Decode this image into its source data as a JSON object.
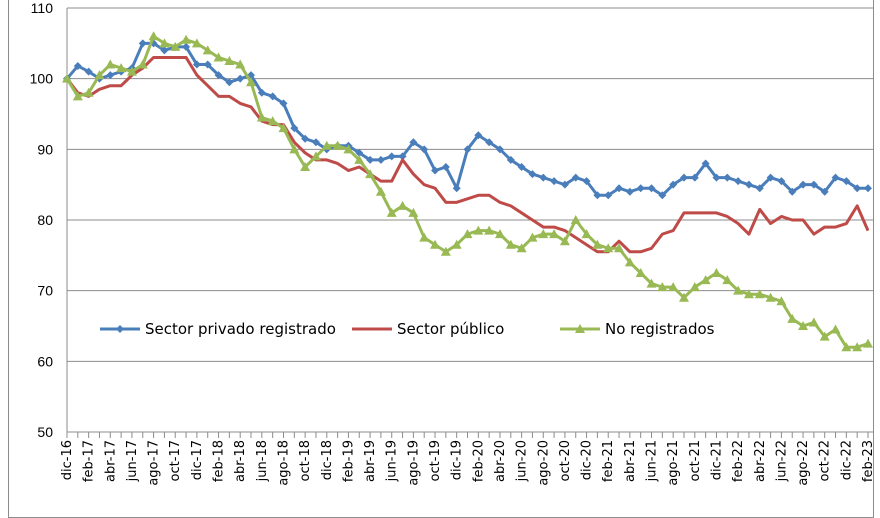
{
  "chart_data": {
    "type": "line",
    "title": "",
    "xlabel": "",
    "ylabel": "",
    "ylim": [
      50,
      110
    ],
    "yticks": [
      50,
      60,
      70,
      80,
      90,
      100,
      110
    ],
    "grid": true,
    "legend_position": "inside-bottom-left",
    "tick_labels": [
      "dic-16",
      "feb-17",
      "abr-17",
      "jun-17",
      "ago-17",
      "oct-17",
      "dic-17",
      "feb-18",
      "abr-18",
      "jun-18",
      "ago-18",
      "oct-18",
      "dic-18",
      "feb-19",
      "abr-19",
      "jun-19",
      "ago-19",
      "oct-19",
      "dic-19",
      "feb-20",
      "abr-20",
      "jun-20",
      "ago-20",
      "oct-20",
      "dic-20",
      "feb-21",
      "abr-21",
      "jun-21",
      "ago-21",
      "oct-21",
      "dic-21",
      "feb-22",
      "abr-22",
      "jun-22",
      "ago-22",
      "oct-22",
      "dic-22",
      "feb-23"
    ],
    "x_note": "monthly points, dic-16 to feb-23",
    "series": [
      {
        "name": "Sector privado registrado",
        "color": "#4a7ebb",
        "marker": "diamond",
        "values": [
          100,
          101.8,
          101,
          100,
          100.5,
          101,
          101.5,
          105,
          105,
          104,
          104.5,
          104.5,
          102,
          102,
          100.5,
          99.5,
          100,
          100.5,
          98,
          97.5,
          96.5,
          93,
          91.5,
          91,
          90,
          90.5,
          90.5,
          89.5,
          88.5,
          88.5,
          89,
          89,
          91,
          90,
          87,
          87.5,
          84.5,
          90,
          92,
          91,
          90,
          88.5,
          87.5,
          86.5,
          86,
          85.5,
          85,
          86,
          85.5,
          83.5,
          83.5,
          84.5,
          84,
          84.5,
          84.5,
          83.5,
          85,
          86,
          86,
          88,
          86,
          86,
          85.5,
          85,
          84.5,
          86,
          85.5,
          84,
          85,
          85,
          84,
          86,
          85.5,
          84.5,
          84.5
        ]
      },
      {
        "name": "Sector público",
        "color": "#be4b48",
        "marker": "none",
        "values": [
          100,
          98,
          97.5,
          98.5,
          99,
          99,
          100.5,
          101.5,
          103,
          103,
          103,
          103,
          100.5,
          99,
          97.5,
          97.5,
          96.5,
          96,
          94,
          93.5,
          93.5,
          91,
          89.5,
          88.5,
          88.5,
          88,
          87,
          87.5,
          86.5,
          85.5,
          85.5,
          88.5,
          86.5,
          85,
          84.5,
          82.5,
          82.5,
          83,
          83.5,
          83.5,
          82.5,
          82,
          81,
          80,
          79,
          79,
          78.5,
          77.5,
          76.5,
          75.5,
          75.5,
          77,
          75.5,
          75.5,
          76,
          78,
          78.5,
          81,
          81,
          81,
          81,
          80.5,
          79.5,
          78,
          81.5,
          79.5,
          80.5,
          80,
          80,
          78,
          79,
          79,
          79.5,
          82,
          78.5
        ]
      },
      {
        "name": "No registrados",
        "color": "#98b954",
        "marker": "triangle",
        "values": [
          100,
          97.5,
          98,
          100.5,
          102,
          101.5,
          101,
          102,
          106,
          105,
          104.5,
          105.5,
          105,
          104,
          103,
          102.5,
          102,
          99.5,
          94.5,
          94,
          93,
          90,
          87.5,
          89,
          90.5,
          90.5,
          90,
          88.5,
          86.5,
          84,
          81,
          82,
          81,
          77.5,
          76.5,
          75.5,
          76.5,
          78,
          78.5,
          78.5,
          78,
          76.5,
          76,
          77.5,
          78,
          78,
          77,
          80,
          78,
          76.5,
          76,
          76,
          74,
          72.5,
          71,
          70.5,
          70.5,
          69,
          70.5,
          71.5,
          72.5,
          71.5,
          70,
          69.5,
          69.5,
          69,
          68.5,
          66,
          65,
          65.5,
          63.5,
          64.5,
          62,
          62,
          62.5
        ]
      }
    ]
  }
}
